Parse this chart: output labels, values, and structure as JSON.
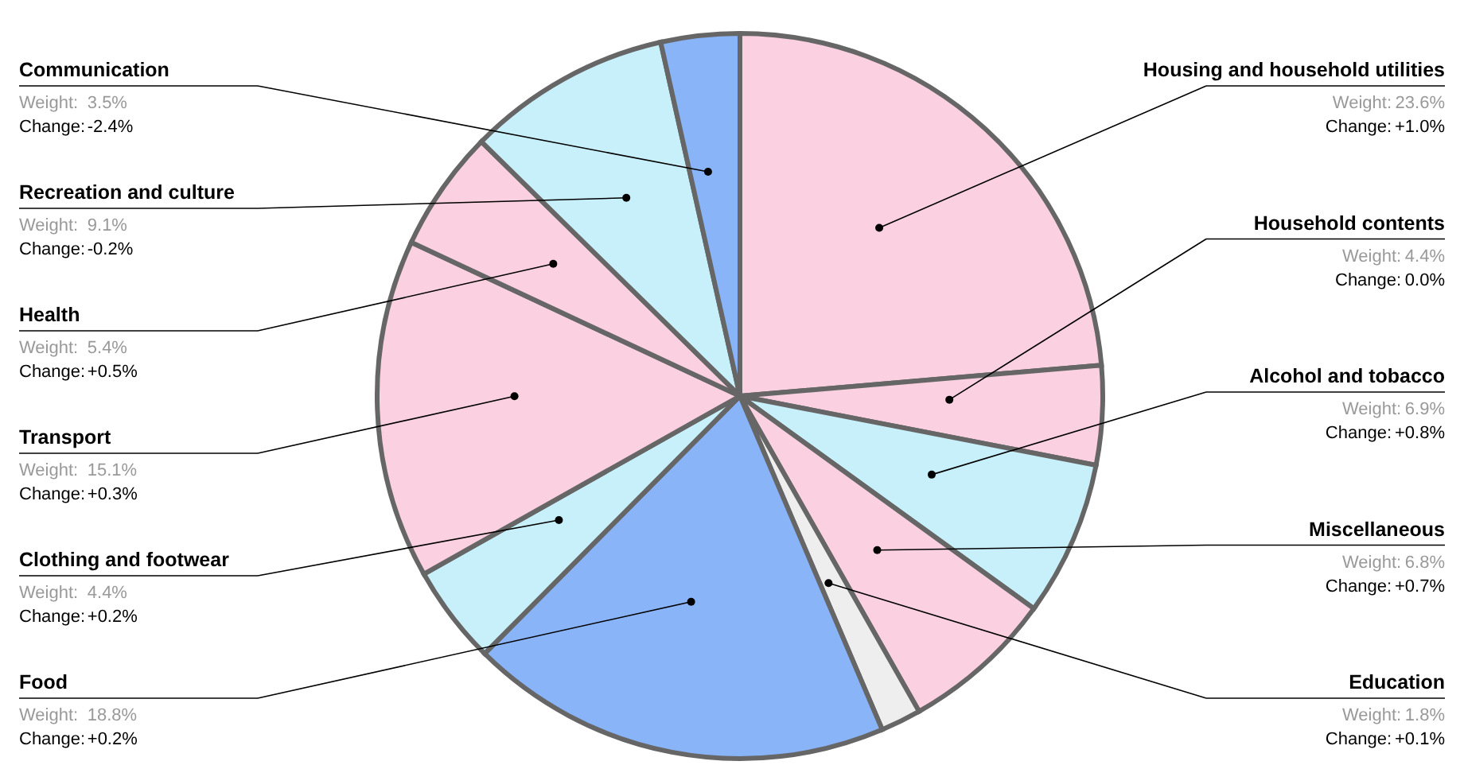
{
  "chart_data": {
    "type": "other",
    "categories": [
      "Housing and household utilities",
      "Household contents",
      "Alcohol and tobacco",
      "Miscellaneous",
      "Education",
      "Food",
      "Clothing and footwear",
      "Transport",
      "Health",
      "Recreation and culture",
      "Communication"
    ],
    "series": [
      {
        "name": "Weight:",
        "values": [
          23.6,
          4.4,
          6.9,
          6.8,
          1.8,
          18.8,
          4.4,
          15.1,
          5.4,
          9.1,
          3.5
        ],
        "value_labels": [
          "23.6%",
          "4.4%",
          "6.9%",
          "6.8%",
          "1.8%",
          "18.8%",
          "4.4%",
          "15.1%",
          "5.4%",
          "9.1%",
          "3.5%"
        ],
        "color": "#999999"
      },
      {
        "name": "Change:",
        "values": [
          1.0,
          0.0,
          0.8,
          0.7,
          0.1,
          0.2,
          0.2,
          0.3,
          0.5,
          -0.2,
          -2.4
        ],
        "value_labels": [
          "+1.0%",
          "0.0%",
          "+0.8%",
          "+0.7%",
          "+0.1%",
          "+0.2%",
          "+0.2%",
          "+0.3%",
          "+0.5%",
          "-0.2%",
          "-2.4%"
        ],
        "color": "#000000"
      }
    ],
    "colors": [
      "#fbd0e0",
      "#fbd0e0",
      "#c8f0fa",
      "#fbd0e0",
      "#eeeeee",
      "#8ab4f8",
      "#c8f0fa",
      "#fbd0e0",
      "#fbd0e0",
      "#c8f0fa",
      "#8ab4f8"
    ],
    "data_labels": true
  }
}
